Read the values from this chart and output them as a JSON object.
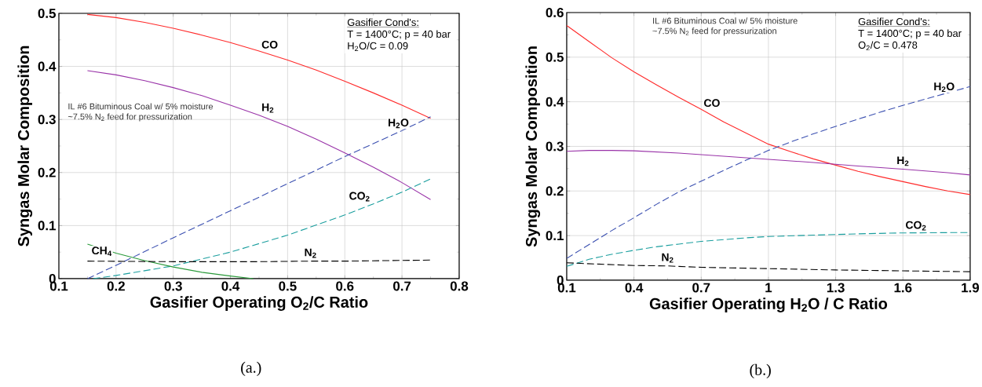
{
  "chart_data": [
    {
      "type": "line",
      "xlabel": "Gasifier Operating O$_{2}$/C Ratio",
      "ylabel": "Syngas Molar Composition",
      "xlim": [
        0.1,
        0.8
      ],
      "ylim": [
        0,
        0.5
      ],
      "xticks": [
        0.1,
        0.2,
        0.3,
        0.4,
        0.5,
        0.6,
        0.7,
        0.8
      ],
      "yticks": [
        0,
        0.1,
        0.2,
        0.3,
        0.4,
        0.5
      ],
      "grid": true,
      "annotations": [
        "Gasifier Cond's:",
        "T = 1400°C; p = 40 bar",
        "H$_{2}$O/C = 0.09",
        "IL #6 Bituminous Coal w/ 5% moisture",
        "~7.5% N$_{2}$ feed for pressurization",
        "(a.)"
      ],
      "series": [
        {
          "name": "CO",
          "color": "#ff2a2a",
          "line_style": "solid",
          "x": [
            0.15,
            0.2,
            0.25,
            0.3,
            0.35,
            0.4,
            0.45,
            0.5,
            0.55,
            0.6,
            0.65,
            0.7,
            0.75
          ],
          "values": [
            0.498,
            0.492,
            0.483,
            0.472,
            0.459,
            0.445,
            0.429,
            0.412,
            0.393,
            0.372,
            0.35,
            0.327,
            0.302
          ]
        },
        {
          "name": "H$_{2}$",
          "color": "#9933a8",
          "line_style": "solid",
          "x": [
            0.15,
            0.2,
            0.25,
            0.3,
            0.35,
            0.4,
            0.45,
            0.5,
            0.55,
            0.6,
            0.65,
            0.7,
            0.75
          ],
          "values": [
            0.392,
            0.384,
            0.373,
            0.36,
            0.345,
            0.327,
            0.308,
            0.287,
            0.263,
            0.237,
            0.21,
            0.181,
            0.149
          ]
        },
        {
          "name": "H$_{2}$O",
          "color": "#3a4fb0",
          "line_style": "dashed",
          "x": [
            0.15,
            0.2,
            0.3,
            0.4,
            0.5,
            0.6,
            0.7,
            0.75
          ],
          "values": [
            0,
            0.025,
            0.077,
            0.128,
            0.179,
            0.23,
            0.279,
            0.305
          ]
        },
        {
          "name": "CO$_{2}$",
          "color": "#1a9e9e",
          "line_style": "dashed",
          "x": [
            0.16,
            0.2,
            0.3,
            0.4,
            0.5,
            0.6,
            0.65,
            0.7,
            0.75
          ],
          "values": [
            0,
            0.006,
            0.024,
            0.05,
            0.082,
            0.12,
            0.141,
            0.163,
            0.188
          ]
        },
        {
          "name": "CH$_{4}$",
          "color": "#2a9a3a",
          "line_style": "solid",
          "x": [
            0.15,
            0.2,
            0.25,
            0.3,
            0.35,
            0.4,
            0.44
          ],
          "values": [
            0.065,
            0.048,
            0.034,
            0.022,
            0.012,
            0.005,
            0
          ]
        },
        {
          "name": "N$_{2}$",
          "color": "#000000",
          "line_style": "dashed",
          "x": [
            0.15,
            0.3,
            0.45,
            0.54,
            0.6,
            0.75
          ],
          "values": [
            0.033,
            0.032,
            0.032,
            0.033,
            0.033,
            0.035
          ]
        }
      ]
    },
    {
      "type": "line",
      "xlabel": "Gasifier Operating H$_{2}$O / C Ratio",
      "ylabel": "Syngas Molar Composition",
      "xlim": [
        0.1,
        1.9
      ],
      "ylim": [
        0,
        0.6
      ],
      "xticks": [
        0.1,
        0.4,
        0.7,
        1,
        1.3,
        1.6,
        1.9
      ],
      "yticks": [
        0,
        0.1,
        0.2,
        0.3,
        0.4,
        0.5,
        0.6
      ],
      "grid": true,
      "annotations": [
        "Gasifier Cond's:",
        "T = 1400°C; p = 40 bar",
        "O$_{2}$/C = 0.478",
        "IL #6 Bituminous Coal w/ 5% moisture",
        "~7.5% N$_{2}$ feed for pressurization",
        "(b.)"
      ],
      "series": [
        {
          "name": "CO",
          "color": "#ff2a2a",
          "line_style": "solid",
          "x": [
            0.1,
            0.2,
            0.3,
            0.4,
            0.5,
            0.6,
            0.7,
            0.8,
            0.9,
            1.0,
            1.1,
            1.2,
            1.3,
            1.4,
            1.5,
            1.6,
            1.7,
            1.8,
            1.9
          ],
          "values": [
            0.571,
            0.535,
            0.499,
            0.467,
            0.438,
            0.41,
            0.383,
            0.355,
            0.33,
            0.305,
            0.288,
            0.272,
            0.258,
            0.244,
            0.232,
            0.221,
            0.21,
            0.2,
            0.192
          ]
        },
        {
          "name": "H$_{2}$",
          "color": "#9933a8",
          "line_style": "solid",
          "x": [
            0.1,
            0.2,
            0.3,
            0.4,
            0.6,
            0.8,
            1.0,
            1.2,
            1.4,
            1.6,
            1.8,
            1.9
          ],
          "values": [
            0.289,
            0.291,
            0.291,
            0.29,
            0.285,
            0.278,
            0.271,
            0.264,
            0.256,
            0.249,
            0.241,
            0.236
          ]
        },
        {
          "name": "H$_{2}$O",
          "color": "#3a4fb0",
          "line_style": "dashed",
          "x": [
            0.1,
            0.2,
            0.3,
            0.4,
            0.5,
            0.6,
            0.7,
            0.8,
            0.9,
            1.0,
            1.1,
            1.2,
            1.3,
            1.4,
            1.5,
            1.6,
            1.7,
            1.8,
            1.9
          ],
          "values": [
            0.049,
            0.08,
            0.111,
            0.14,
            0.17,
            0.198,
            0.222,
            0.246,
            0.269,
            0.291,
            0.31,
            0.328,
            0.345,
            0.361,
            0.377,
            0.392,
            0.406,
            0.42,
            0.434
          ]
        },
        {
          "name": "CO$_{2}$",
          "color": "#1a9e9e",
          "line_style": "dashed",
          "x": [
            0.1,
            0.2,
            0.3,
            0.4,
            0.5,
            0.6,
            0.7,
            0.8,
            0.9,
            1.0,
            1.2,
            1.4,
            1.6,
            1.9
          ],
          "values": [
            0.031,
            0.047,
            0.058,
            0.067,
            0.075,
            0.081,
            0.087,
            0.091,
            0.095,
            0.098,
            0.101,
            0.104,
            0.106,
            0.107
          ]
        },
        {
          "name": "N$_{2}$",
          "color": "#000000",
          "line_style": "dashed",
          "x": [
            0.1,
            0.4,
            0.55,
            0.7,
            1.0,
            1.3,
            1.6,
            1.9
          ],
          "values": [
            0.039,
            0.033,
            0.032,
            0.029,
            0.026,
            0.023,
            0.021,
            0.019
          ]
        }
      ]
    }
  ]
}
